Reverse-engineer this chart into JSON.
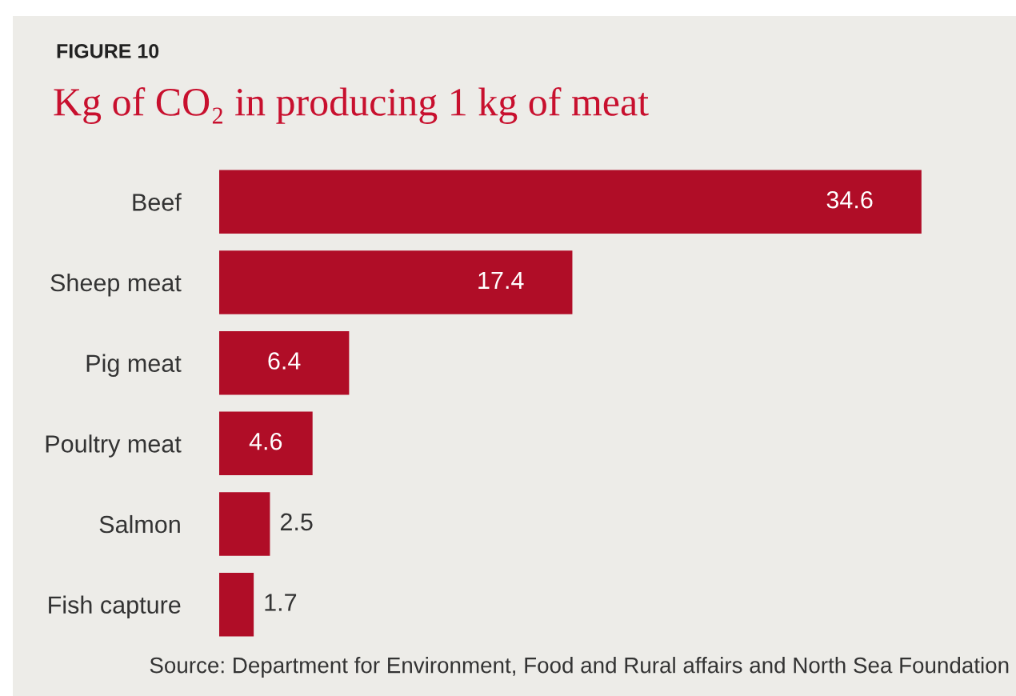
{
  "chart_data": {
    "type": "bar",
    "orientation": "horizontal",
    "title": "Kg of CO₂ in producing 1 kg of meat",
    "categories": [
      "Beef",
      "Sheep meat",
      "Pig meat",
      "Poultry meat",
      "Salmon",
      "Fish capture"
    ],
    "values": [
      34.6,
      17.4,
      6.4,
      4.6,
      2.5,
      1.7
    ],
    "color": "#b00d27",
    "data_labels": true,
    "tick_labels": "y",
    "annotations": [
      "FIGURE 10",
      "Source: Department for Environment, Food and Rural affairs and North Sea Foundation"
    ]
  }
}
